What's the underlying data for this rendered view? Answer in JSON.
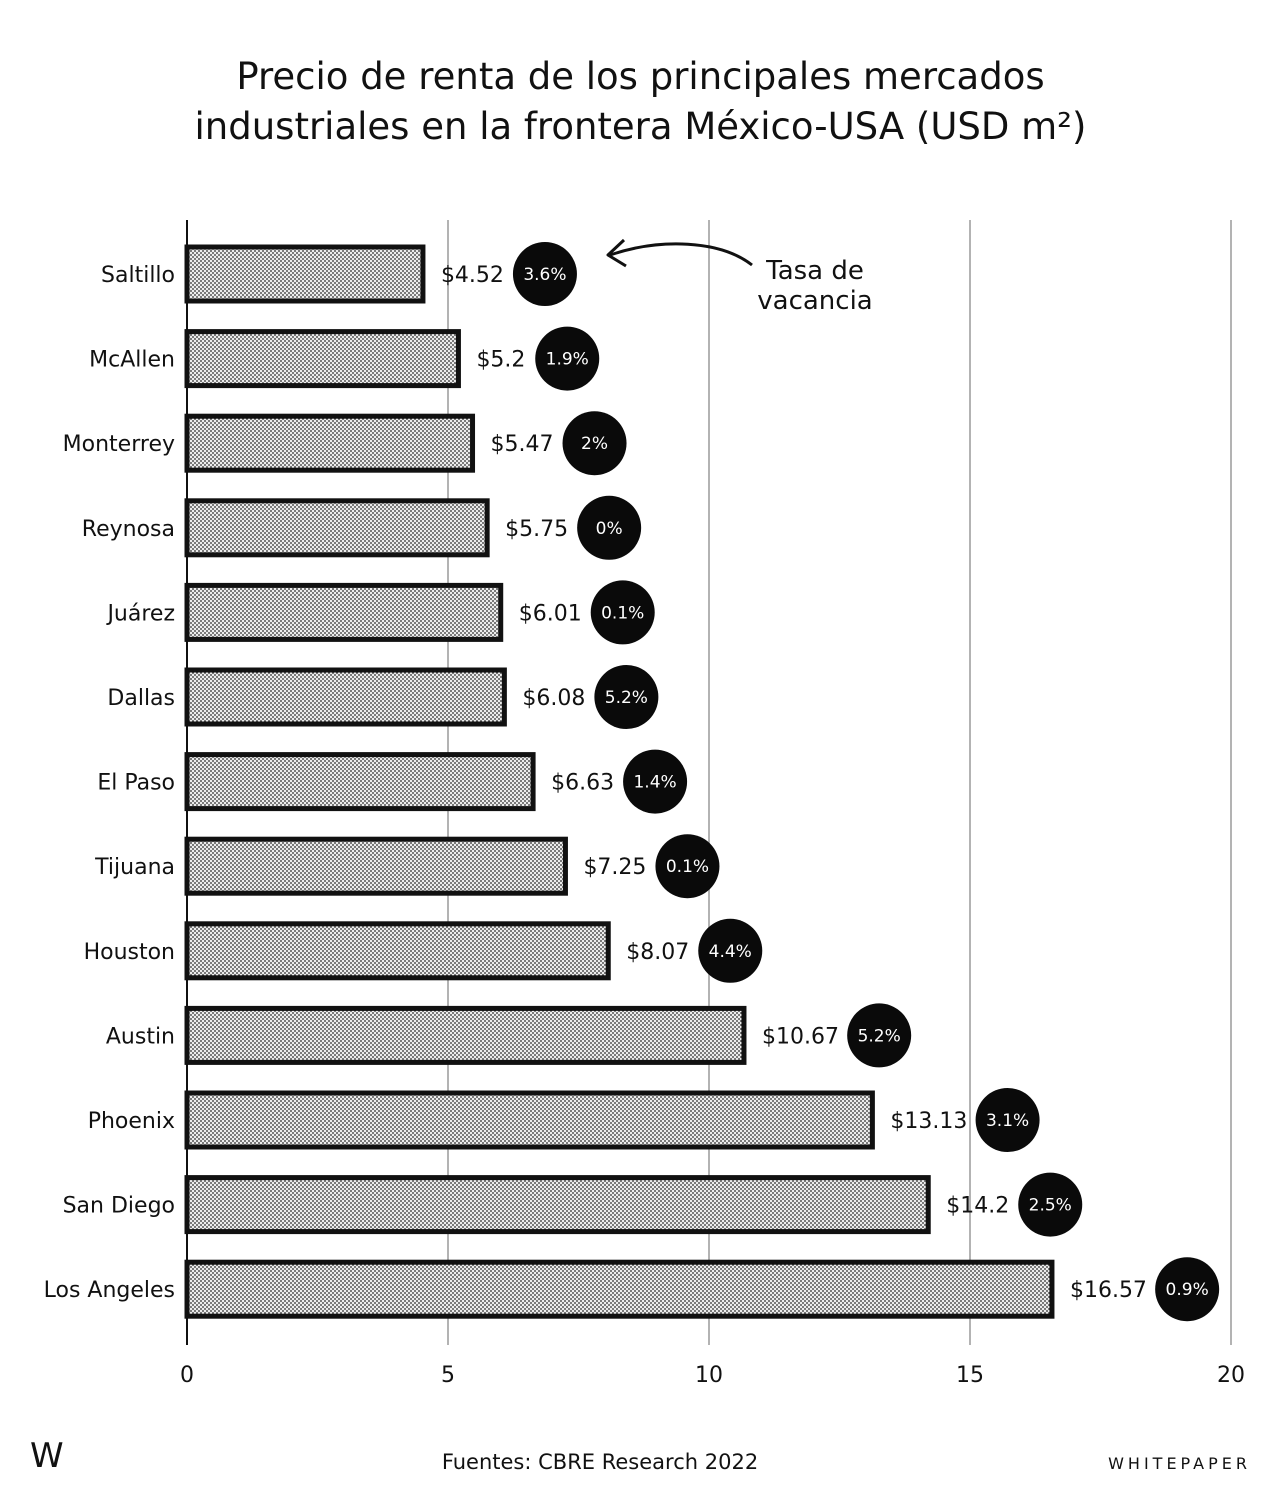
{
  "title_line1": "Precio de renta de los principales mercados",
  "title_line2": "industriales en la frontera México-USA (USD m²)",
  "annotation": {
    "line1": "Tasa de",
    "line2": "vacancia"
  },
  "footer": {
    "logo": "W",
    "source": "Fuentes: CBRE Research 2022",
    "brand": "WHITEPAPER"
  },
  "colors": {
    "ink": "#111111",
    "bar_fill": "#e6e6e6",
    "grid": "#b3b3b3",
    "badge": "#0a0a0a"
  },
  "chart_data": {
    "type": "bar",
    "orientation": "horizontal",
    "title": "Precio de renta de los principales mercados industriales en la frontera México-USA (USD m²)",
    "xlabel": "",
    "ylabel": "",
    "xlim": [
      0,
      20
    ],
    "xticks": [
      0,
      5,
      10,
      15,
      20
    ],
    "grid": true,
    "categories": [
      "Saltillo",
      "McAllen",
      "Monterrey",
      "Reynosa",
      "Juárez",
      "Dallas",
      "El Paso",
      "Tijuana",
      "Houston",
      "Austin",
      "Phoenix",
      "San Diego",
      "Los Angeles"
    ],
    "values": [
      4.52,
      5.2,
      5.47,
      5.75,
      6.01,
      6.08,
      6.63,
      7.25,
      8.07,
      10.67,
      13.13,
      14.2,
      16.57
    ],
    "value_labels": [
      "$4.52",
      "$5.2",
      "$5.47",
      "$5.75",
      "$6.01",
      "$6.08",
      "$6.63",
      "$7.25",
      "$8.07",
      "$10.67",
      "$13.13",
      "$14.2",
      "$16.57"
    ],
    "vacancy_labels": [
      "3.6%",
      "1.9%",
      "2%",
      "0%",
      "0.1%",
      "5.2%",
      "1.4%",
      "0.1%",
      "4.4%",
      "5.2%",
      "3.1%",
      "2.5%",
      "0.9%"
    ]
  }
}
